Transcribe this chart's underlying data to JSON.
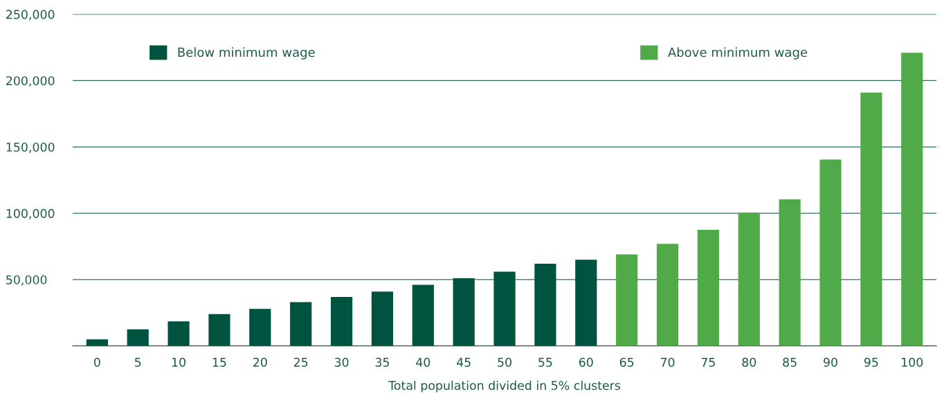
{
  "chart_data": {
    "type": "bar",
    "xlabel": "Total population divided in 5% clusters",
    "categories": [
      "0",
      "5",
      "10",
      "15",
      "20",
      "25",
      "30",
      "35",
      "40",
      "45",
      "50",
      "55",
      "60",
      "65",
      "70",
      "75",
      "80",
      "85",
      "90",
      "95",
      "100"
    ],
    "series": [
      {
        "name": "Below minimum wage",
        "color": "#00533f",
        "values": [
          5000,
          12500,
          18500,
          24000,
          28000,
          33000,
          37000,
          41000,
          46000,
          51000,
          56000,
          62000,
          65000,
          null,
          null,
          null,
          null,
          null,
          null,
          null,
          null
        ]
      },
      {
        "name": "Above minimum wage",
        "color": "#50aa48",
        "values": [
          null,
          null,
          null,
          null,
          null,
          null,
          null,
          null,
          null,
          null,
          null,
          null,
          null,
          69000,
          77000,
          87500,
          100500,
          110500,
          140500,
          191000,
          221000
        ]
      }
    ],
    "ylim": [
      0,
      250000
    ],
    "yticks": [
      {
        "value": 0,
        "label": null
      },
      {
        "value": 50000,
        "label": "50,000"
      },
      {
        "value": 100000,
        "label": "100,000"
      },
      {
        "value": 150000,
        "label": "150,000"
      },
      {
        "value": 200000,
        "label": "200,000"
      },
      {
        "value": 250000,
        "label": "250,000"
      }
    ],
    "grid": "y",
    "legend": "top"
  }
}
